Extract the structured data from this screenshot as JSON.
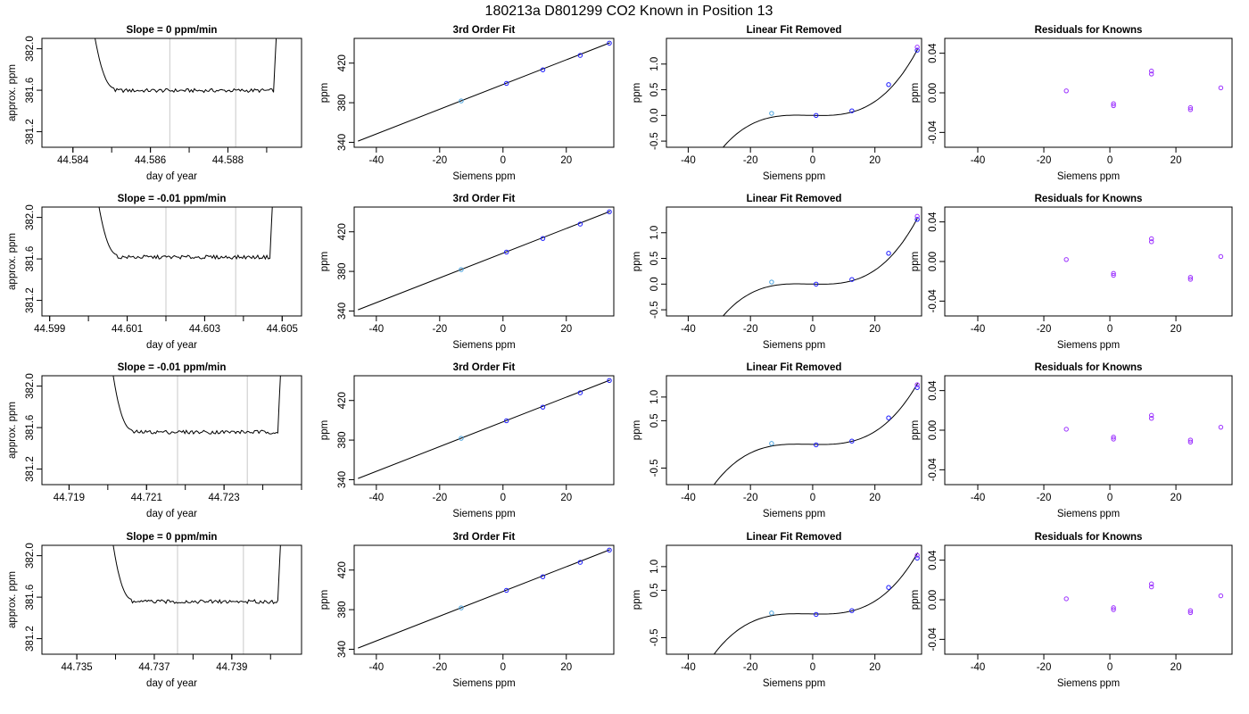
{
  "figure": {
    "title": "180213a      D801299   CO2 Known in Position  13"
  },
  "chart_data": [
    {
      "type": "line",
      "title": "Slope =  0  ppm/min",
      "xlabel": "day of year",
      "ylabel": "approx. ppm",
      "xlim": [
        44.5832,
        44.5899
      ],
      "ylim": [
        381.05,
        382.1
      ],
      "xticks": [
        "44.584",
        "44.586",
        "44.588"
      ],
      "yticks": [
        "381.2",
        "381.6",
        "382.0"
      ],
      "vlines": [
        44.5865,
        44.5882
      ],
      "trace_level": 381.6,
      "trace_x_range": [
        44.5844,
        44.5893
      ]
    },
    {
      "type": "scatter",
      "title": "3rd Order Fit",
      "xlabel": "Siemens ppm",
      "ylabel": "ppm",
      "xlim": [
        -47,
        35
      ],
      "ylim": [
        335,
        445
      ],
      "xticks": [
        "-40",
        "-20",
        "0",
        "20"
      ],
      "yticks": [
        "340",
        "380",
        "420"
      ],
      "points": [
        [
          -13.2,
          381.8
        ],
        [
          1.1,
          399.5
        ],
        [
          12.6,
          413.3
        ],
        [
          24.4,
          427.8
        ],
        [
          33.6,
          440.2
        ]
      ],
      "fit_line": [
        [
          -45.8,
          341.2
        ],
        [
          33.8,
          440.6
        ]
      ]
    },
    {
      "type": "scatter",
      "title": "Linear Fit Removed",
      "xlabel": "Siemens ppm",
      "ylabel": "ppm",
      "xlim": [
        -47,
        35
      ],
      "ylim": [
        -0.62,
        1.5
      ],
      "xticks": [
        "-40",
        "-20",
        "0",
        "20"
      ],
      "yticks": [
        "-0.5",
        "0.0",
        "0.5",
        "1.0"
      ],
      "points": [
        [
          -13.2,
          0.04
        ],
        [
          1.1,
          0.0
        ],
        [
          12.6,
          0.09
        ],
        [
          24.4,
          0.6
        ],
        [
          33.6,
          1.27
        ],
        [
          33.6,
          1.33
        ]
      ],
      "curve_poly": [
        0,
        -0.00125,
        0.000112,
        3.14e-05
      ],
      "curve_x_range": [
        -45.8,
        33.8
      ]
    },
    {
      "type": "scatter",
      "title": "Residuals for Knowns",
      "xlabel": "Siemens ppm",
      "ylabel": "ppm",
      "xlim": [
        -50,
        37
      ],
      "ylim": [
        -0.055,
        0.055
      ],
      "xticks": [
        "-40",
        "-20",
        "0",
        "20"
      ],
      "yticks": [
        "-0.04",
        "0.00",
        "0.04"
      ],
      "points": [
        [
          -13.2,
          0.002
        ],
        [
          1.1,
          -0.011
        ],
        [
          1.1,
          -0.013
        ],
        [
          12.6,
          0.019
        ],
        [
          12.6,
          0.022
        ],
        [
          24.4,
          -0.015
        ],
        [
          24.4,
          -0.017
        ],
        [
          33.6,
          0.005
        ]
      ]
    },
    {
      "type": "line",
      "title": "Slope =  -0.01  ppm/min",
      "xlabel": "day of year",
      "ylabel": "approx. ppm",
      "xlim": [
        44.5988,
        44.6055
      ],
      "ylim": [
        381.05,
        382.1
      ],
      "xticks": [
        "44.599",
        "44.601",
        "44.603",
        "44.605"
      ],
      "yticks": [
        "381.2",
        "381.6",
        "382.0"
      ],
      "vlines": [
        44.602,
        44.6038
      ],
      "trace_level": 381.62,
      "trace_x_range": [
        44.6001,
        44.6048
      ]
    },
    {
      "type": "scatter",
      "title": "3rd Order Fit",
      "xlabel": "Siemens ppm",
      "ylabel": "ppm",
      "xlim": [
        -47,
        35
      ],
      "ylim": [
        335,
        445
      ],
      "xticks": [
        "-40",
        "-20",
        "0",
        "20"
      ],
      "yticks": [
        "340",
        "380",
        "420"
      ],
      "points": [
        [
          -13.2,
          381.8
        ],
        [
          1.1,
          399.5
        ],
        [
          12.6,
          413.3
        ],
        [
          24.4,
          427.8
        ],
        [
          33.6,
          440.2
        ]
      ],
      "fit_line": [
        [
          -45.8,
          341.2
        ],
        [
          33.8,
          440.6
        ]
      ]
    },
    {
      "type": "scatter",
      "title": "Linear Fit Removed",
      "xlabel": "Siemens ppm",
      "ylabel": "ppm",
      "xlim": [
        -47,
        35
      ],
      "ylim": [
        -0.62,
        1.5
      ],
      "xticks": [
        "-40",
        "-20",
        "0",
        "20"
      ],
      "yticks": [
        "-0.5",
        "0.0",
        "0.5",
        "1.0"
      ],
      "points": [
        [
          -13.2,
          0.04
        ],
        [
          1.1,
          0.0
        ],
        [
          12.6,
          0.09
        ],
        [
          24.4,
          0.6
        ],
        [
          33.6,
          1.26
        ],
        [
          33.6,
          1.32
        ]
      ],
      "curve_poly": [
        0,
        -0.00125,
        0.000112,
        3.14e-05
      ],
      "curve_x_range": [
        -45.8,
        33.8
      ]
    },
    {
      "type": "scatter",
      "title": "Residuals for Knowns",
      "xlabel": "Siemens ppm",
      "ylabel": "ppm",
      "xlim": [
        -50,
        37
      ],
      "ylim": [
        -0.055,
        0.055
      ],
      "xticks": [
        "-40",
        "-20",
        "0",
        "20"
      ],
      "yticks": [
        "-0.04",
        "0.00",
        "0.04"
      ],
      "points": [
        [
          -13.2,
          0.002
        ],
        [
          1.1,
          -0.012
        ],
        [
          1.1,
          -0.014
        ],
        [
          12.6,
          0.02
        ],
        [
          12.6,
          0.023
        ],
        [
          24.4,
          -0.016
        ],
        [
          24.4,
          -0.018
        ],
        [
          33.6,
          0.005
        ]
      ]
    },
    {
      "type": "line",
      "title": "Slope =  -0.01  ppm/min",
      "xlabel": "day of year",
      "ylabel": "approx. ppm",
      "xlim": [
        44.7183,
        44.725
      ],
      "ylim": [
        381.05,
        382.1
      ],
      "xticks": [
        "44.719",
        "44.721",
        "44.723"
      ],
      "yticks": [
        "381.2",
        "381.6",
        "382.0"
      ],
      "vlines": [
        44.7218,
        44.7236
      ],
      "trace_level": 381.56,
      "trace_x_range": [
        44.72,
        44.7245
      ]
    },
    {
      "type": "scatter",
      "title": "3rd Order Fit",
      "xlabel": "Siemens ppm",
      "ylabel": "ppm",
      "xlim": [
        -47,
        35
      ],
      "ylim": [
        335,
        445
      ],
      "xticks": [
        "-40",
        "-20",
        "0",
        "20"
      ],
      "yticks": [
        "340",
        "380",
        "420"
      ],
      "points": [
        [
          -13.2,
          381.8
        ],
        [
          1.1,
          399.5
        ],
        [
          12.6,
          413.3
        ],
        [
          24.4,
          427.8
        ],
        [
          33.6,
          440.2
        ]
      ],
      "fit_line": [
        [
          -45.8,
          341.2
        ],
        [
          33.8,
          440.6
        ]
      ]
    },
    {
      "type": "scatter",
      "title": "Linear Fit Removed",
      "xlabel": "Siemens ppm",
      "ylabel": "ppm",
      "xlim": [
        -47,
        35
      ],
      "ylim": [
        -0.85,
        1.45
      ],
      "xticks": [
        "-40",
        "-20",
        "0",
        "20"
      ],
      "yticks": [
        "-0.5",
        "0.5",
        "1.0"
      ],
      "points": [
        [
          -13.2,
          0.02
        ],
        [
          1.1,
          -0.01
        ],
        [
          12.6,
          0.07
        ],
        [
          24.4,
          0.56
        ],
        [
          33.6,
          1.2
        ],
        [
          33.6,
          1.26
        ]
      ],
      "curve_poly": [
        0,
        -0.00125,
        0.000112,
        3.14e-05
      ],
      "curve_x_range": [
        -45.8,
        33.8
      ]
    },
    {
      "type": "scatter",
      "title": "Residuals for Knowns",
      "xlabel": "Siemens ppm",
      "ylabel": "ppm",
      "xlim": [
        -50,
        37
      ],
      "ylim": [
        -0.055,
        0.055
      ],
      "xticks": [
        "-40",
        "-20",
        "0",
        "20"
      ],
      "yticks": [
        "-0.04",
        "0.00",
        "0.04"
      ],
      "points": [
        [
          -13.2,
          0.001
        ],
        [
          1.1,
          -0.007
        ],
        [
          1.1,
          -0.009
        ],
        [
          12.6,
          0.012
        ],
        [
          12.6,
          0.015
        ],
        [
          24.4,
          -0.01
        ],
        [
          24.4,
          -0.012
        ],
        [
          33.6,
          0.003
        ]
      ]
    },
    {
      "type": "line",
      "title": "Slope =  0  ppm/min",
      "xlabel": "day of year",
      "ylabel": "approx. ppm",
      "xlim": [
        44.7341,
        44.7408
      ],
      "ylim": [
        381.05,
        382.1
      ],
      "xticks": [
        "44.735",
        "44.737",
        "44.739"
      ],
      "yticks": [
        "381.2",
        "381.6",
        "382.0"
      ],
      "vlines": [
        44.7376,
        44.7393
      ],
      "trace_level": 381.56,
      "trace_x_range": [
        44.7358,
        44.7403
      ]
    },
    {
      "type": "scatter",
      "title": "3rd Order Fit",
      "xlabel": "Siemens ppm",
      "ylabel": "ppm",
      "xlim": [
        -47,
        35
      ],
      "ylim": [
        335,
        445
      ],
      "xticks": [
        "-40",
        "-20",
        "0",
        "20"
      ],
      "yticks": [
        "340",
        "380",
        "420"
      ],
      "points": [
        [
          -13.2,
          381.8
        ],
        [
          1.1,
          399.5
        ],
        [
          12.6,
          413.3
        ],
        [
          24.4,
          427.8
        ],
        [
          33.6,
          440.2
        ]
      ],
      "fit_line": [
        [
          -45.8,
          341.2
        ],
        [
          33.8,
          440.6
        ]
      ]
    },
    {
      "type": "scatter",
      "title": "Linear Fit Removed",
      "xlabel": "Siemens ppm",
      "ylabel": "ppm",
      "xlim": [
        -47,
        35
      ],
      "ylim": [
        -0.85,
        1.45
      ],
      "xticks": [
        "-40",
        "-20",
        "0",
        "20"
      ],
      "yticks": [
        "-0.5",
        "0.5",
        "1.0"
      ],
      "points": [
        [
          -13.2,
          0.02
        ],
        [
          1.1,
          -0.01
        ],
        [
          12.6,
          0.07
        ],
        [
          24.4,
          0.56
        ],
        [
          33.6,
          1.18
        ],
        [
          33.6,
          1.24
        ]
      ],
      "curve_poly": [
        0,
        -0.00125,
        0.000112,
        3.14e-05
      ],
      "curve_x_range": [
        -45.8,
        33.8
      ]
    },
    {
      "type": "scatter",
      "title": "Residuals for Knowns",
      "xlabel": "Siemens ppm",
      "ylabel": "ppm",
      "xlim": [
        -50,
        37
      ],
      "ylim": [
        -0.055,
        0.055
      ],
      "xticks": [
        "-40",
        "-20",
        "0",
        "20"
      ],
      "yticks": [
        "-0.04",
        "0.00",
        "0.04"
      ],
      "points": [
        [
          -13.2,
          0.001
        ],
        [
          1.1,
          -0.008
        ],
        [
          1.1,
          -0.01
        ],
        [
          12.6,
          0.013
        ],
        [
          12.6,
          0.016
        ],
        [
          24.4,
          -0.011
        ],
        [
          24.4,
          -0.013
        ],
        [
          33.6,
          0.004
        ]
      ]
    }
  ],
  "colors": {
    "axis": "#000000",
    "vline": "#c8c8c8",
    "point_blue": "#1a1aff",
    "point_purple": "#9b30ff",
    "point_lightblue": "#4aa3df"
  }
}
